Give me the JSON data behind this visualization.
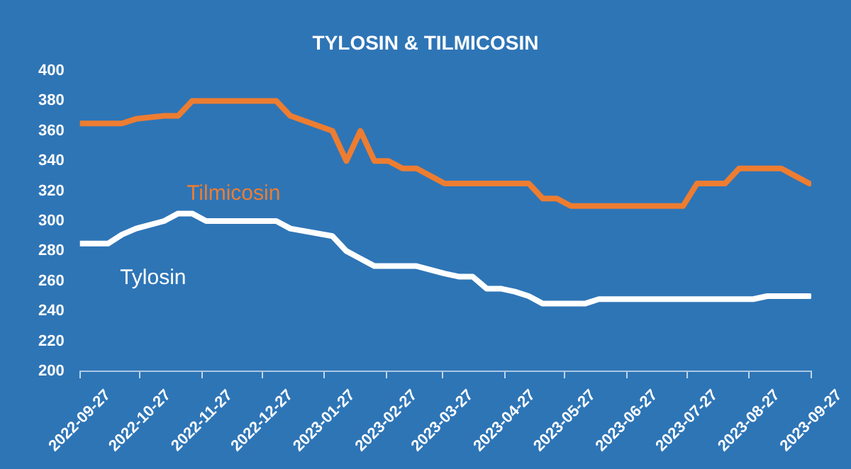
{
  "chart_data": {
    "type": "line",
    "title": "TYLOSIN & TILMICOSIN",
    "x": [
      "2022-09-27",
      "2022-10-11",
      "2022-10-18",
      "2022-10-25",
      "2022-11-08",
      "2022-11-15",
      "2022-11-22",
      "2022-11-29",
      "2022-12-06",
      "2022-12-13",
      "2022-12-20",
      "2022-12-27",
      "2023-01-03",
      "2023-01-10",
      "2023-01-31",
      "2023-02-07",
      "2023-02-14",
      "2023-02-21",
      "2023-02-28",
      "2023-03-07",
      "2023-03-14",
      "2023-03-28",
      "2023-04-04",
      "2023-04-11",
      "2023-04-18",
      "2023-04-25",
      "2023-05-02",
      "2023-05-09",
      "2023-05-16",
      "2023-05-23",
      "2023-05-30",
      "2023-06-06",
      "2023-06-13",
      "2023-06-20",
      "2023-06-27",
      "2023-07-04",
      "2023-07-11",
      "2023-07-18",
      "2023-07-25",
      "2023-08-01",
      "2023-08-08",
      "2023-08-15",
      "2023-08-22",
      "2023-08-29",
      "2023-09-05",
      "2023-09-12",
      "2023-09-19",
      "2023-09-26"
    ],
    "series": [
      {
        "name": "Tilmicosin",
        "color": "#ed7d31",
        "values": [
          365,
          365,
          365,
          368,
          370,
          370,
          380,
          380,
          380,
          380,
          380,
          380,
          380,
          370,
          360,
          340,
          360,
          340,
          340,
          335,
          335,
          325,
          325,
          325,
          325,
          325,
          325,
          325,
          315,
          315,
          310,
          310,
          310,
          310,
          310,
          310,
          310,
          310,
          310,
          325,
          325,
          325,
          335,
          335,
          335,
          335,
          330,
          325
        ]
      },
      {
        "name": "Tylosin",
        "color": "#ffffff",
        "values": [
          285,
          285,
          291,
          295,
          300,
          305,
          305,
          300,
          300,
          300,
          300,
          300,
          300,
          295,
          290,
          280,
          275,
          270,
          270,
          270,
          270,
          265,
          263,
          263,
          255,
          255,
          253,
          250,
          245,
          245,
          245,
          245,
          248,
          248,
          248,
          248,
          248,
          248,
          248,
          248,
          248,
          248,
          248,
          248,
          250,
          250,
          250,
          250
        ]
      }
    ],
    "xlim": [
      "2022-09-27",
      "2023-09-27"
    ],
    "xticks": [
      "2022-09-27",
      "2022-10-27",
      "2022-11-27",
      "2022-12-27",
      "2023-01-27",
      "2023-02-27",
      "2023-03-27",
      "2023-04-27",
      "2023-05-27",
      "2023-06-27",
      "2023-07-27",
      "2023-08-27",
      "2023-09-27"
    ],
    "ylim": [
      200,
      400
    ],
    "yticks": [
      200,
      220,
      240,
      260,
      280,
      300,
      320,
      340,
      360,
      380,
      400
    ],
    "grid": false,
    "legend": false,
    "marker": "none",
    "line_style": "solid"
  }
}
